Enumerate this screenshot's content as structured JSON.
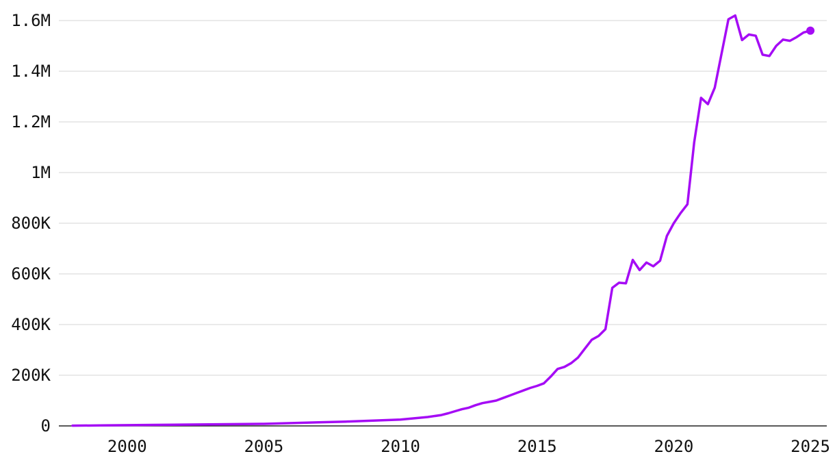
{
  "chart_data": {
    "type": "line",
    "title": "",
    "xlabel": "",
    "ylabel": "",
    "xlim": [
      1997.5,
      2025.6
    ],
    "ylim": [
      0,
      1600000
    ],
    "grid": true,
    "legend": "none",
    "color": "#a50cf5",
    "y_ticks": [
      {
        "value": 0,
        "label": "0"
      },
      {
        "value": 200000,
        "label": "200K"
      },
      {
        "value": 400000,
        "label": "400K"
      },
      {
        "value": 600000,
        "label": "600K"
      },
      {
        "value": 800000,
        "label": "800K"
      },
      {
        "value": 1000000,
        "label": "1M"
      },
      {
        "value": 1200000,
        "label": "1.2M"
      },
      {
        "value": 1400000,
        "label": "1.4M"
      },
      {
        "value": 1600000,
        "label": "1.6M"
      }
    ],
    "x_ticks": [
      {
        "value": 2000,
        "label": "2000"
      },
      {
        "value": 2005,
        "label": "2005"
      },
      {
        "value": 2010,
        "label": "2010"
      },
      {
        "value": 2015,
        "label": "2015"
      },
      {
        "value": 2020,
        "label": "2020"
      },
      {
        "value": 2025,
        "label": "2025"
      }
    ],
    "series": [
      {
        "x": [
          1998.0,
          1999.0,
          2000.0,
          2001.0,
          2002.0,
          2003.0,
          2004.0,
          2005.0,
          2006.0,
          2007.0,
          2008.0,
          2009.0,
          2010.0,
          2010.5,
          2011.0,
          2011.5,
          2011.75,
          2012.0,
          2012.25,
          2012.5,
          2012.75,
          2013.0,
          2013.25,
          2013.5,
          2013.75,
          2014.0,
          2014.25,
          2014.5,
          2014.75,
          2015.0,
          2015.25,
          2015.5,
          2015.75,
          2016.0,
          2016.25,
          2016.5,
          2016.75,
          2017.0,
          2017.25,
          2017.5,
          2017.75,
          2018.0,
          2018.25,
          2018.5,
          2018.75,
          2019.0,
          2019.25,
          2019.5,
          2019.75,
          2020.0,
          2020.25,
          2020.5,
          2020.75,
          2021.0,
          2021.25,
          2021.5,
          2021.75,
          2022.0,
          2022.25,
          2022.5,
          2022.75,
          2023.0,
          2023.25,
          2023.5,
          2023.75,
          2024.0,
          2024.25,
          2024.5,
          2024.75,
          2025.0
        ],
        "y": [
          1000,
          2000,
          3000,
          4000,
          5000,
          6000,
          7000,
          8000,
          11000,
          14000,
          17000,
          21000,
          25000,
          30000,
          35000,
          43000,
          50000,
          58000,
          66000,
          72000,
          82000,
          90000,
          95000,
          100000,
          110000,
          120000,
          130000,
          140000,
          150000,
          158000,
          168000,
          195000,
          225000,
          233000,
          248000,
          270000,
          305000,
          340000,
          355000,
          382000,
          545000,
          565000,
          563000,
          655000,
          615000,
          645000,
          630000,
          652000,
          750000,
          800000,
          840000,
          875000,
          1120000,
          1295000,
          1270000,
          1335000,
          1470000,
          1605000,
          1620000,
          1523000,
          1545000,
          1540000,
          1465000,
          1460000,
          1500000,
          1525000,
          1520000,
          1535000,
          1553000,
          1560000
        ]
      }
    ]
  }
}
